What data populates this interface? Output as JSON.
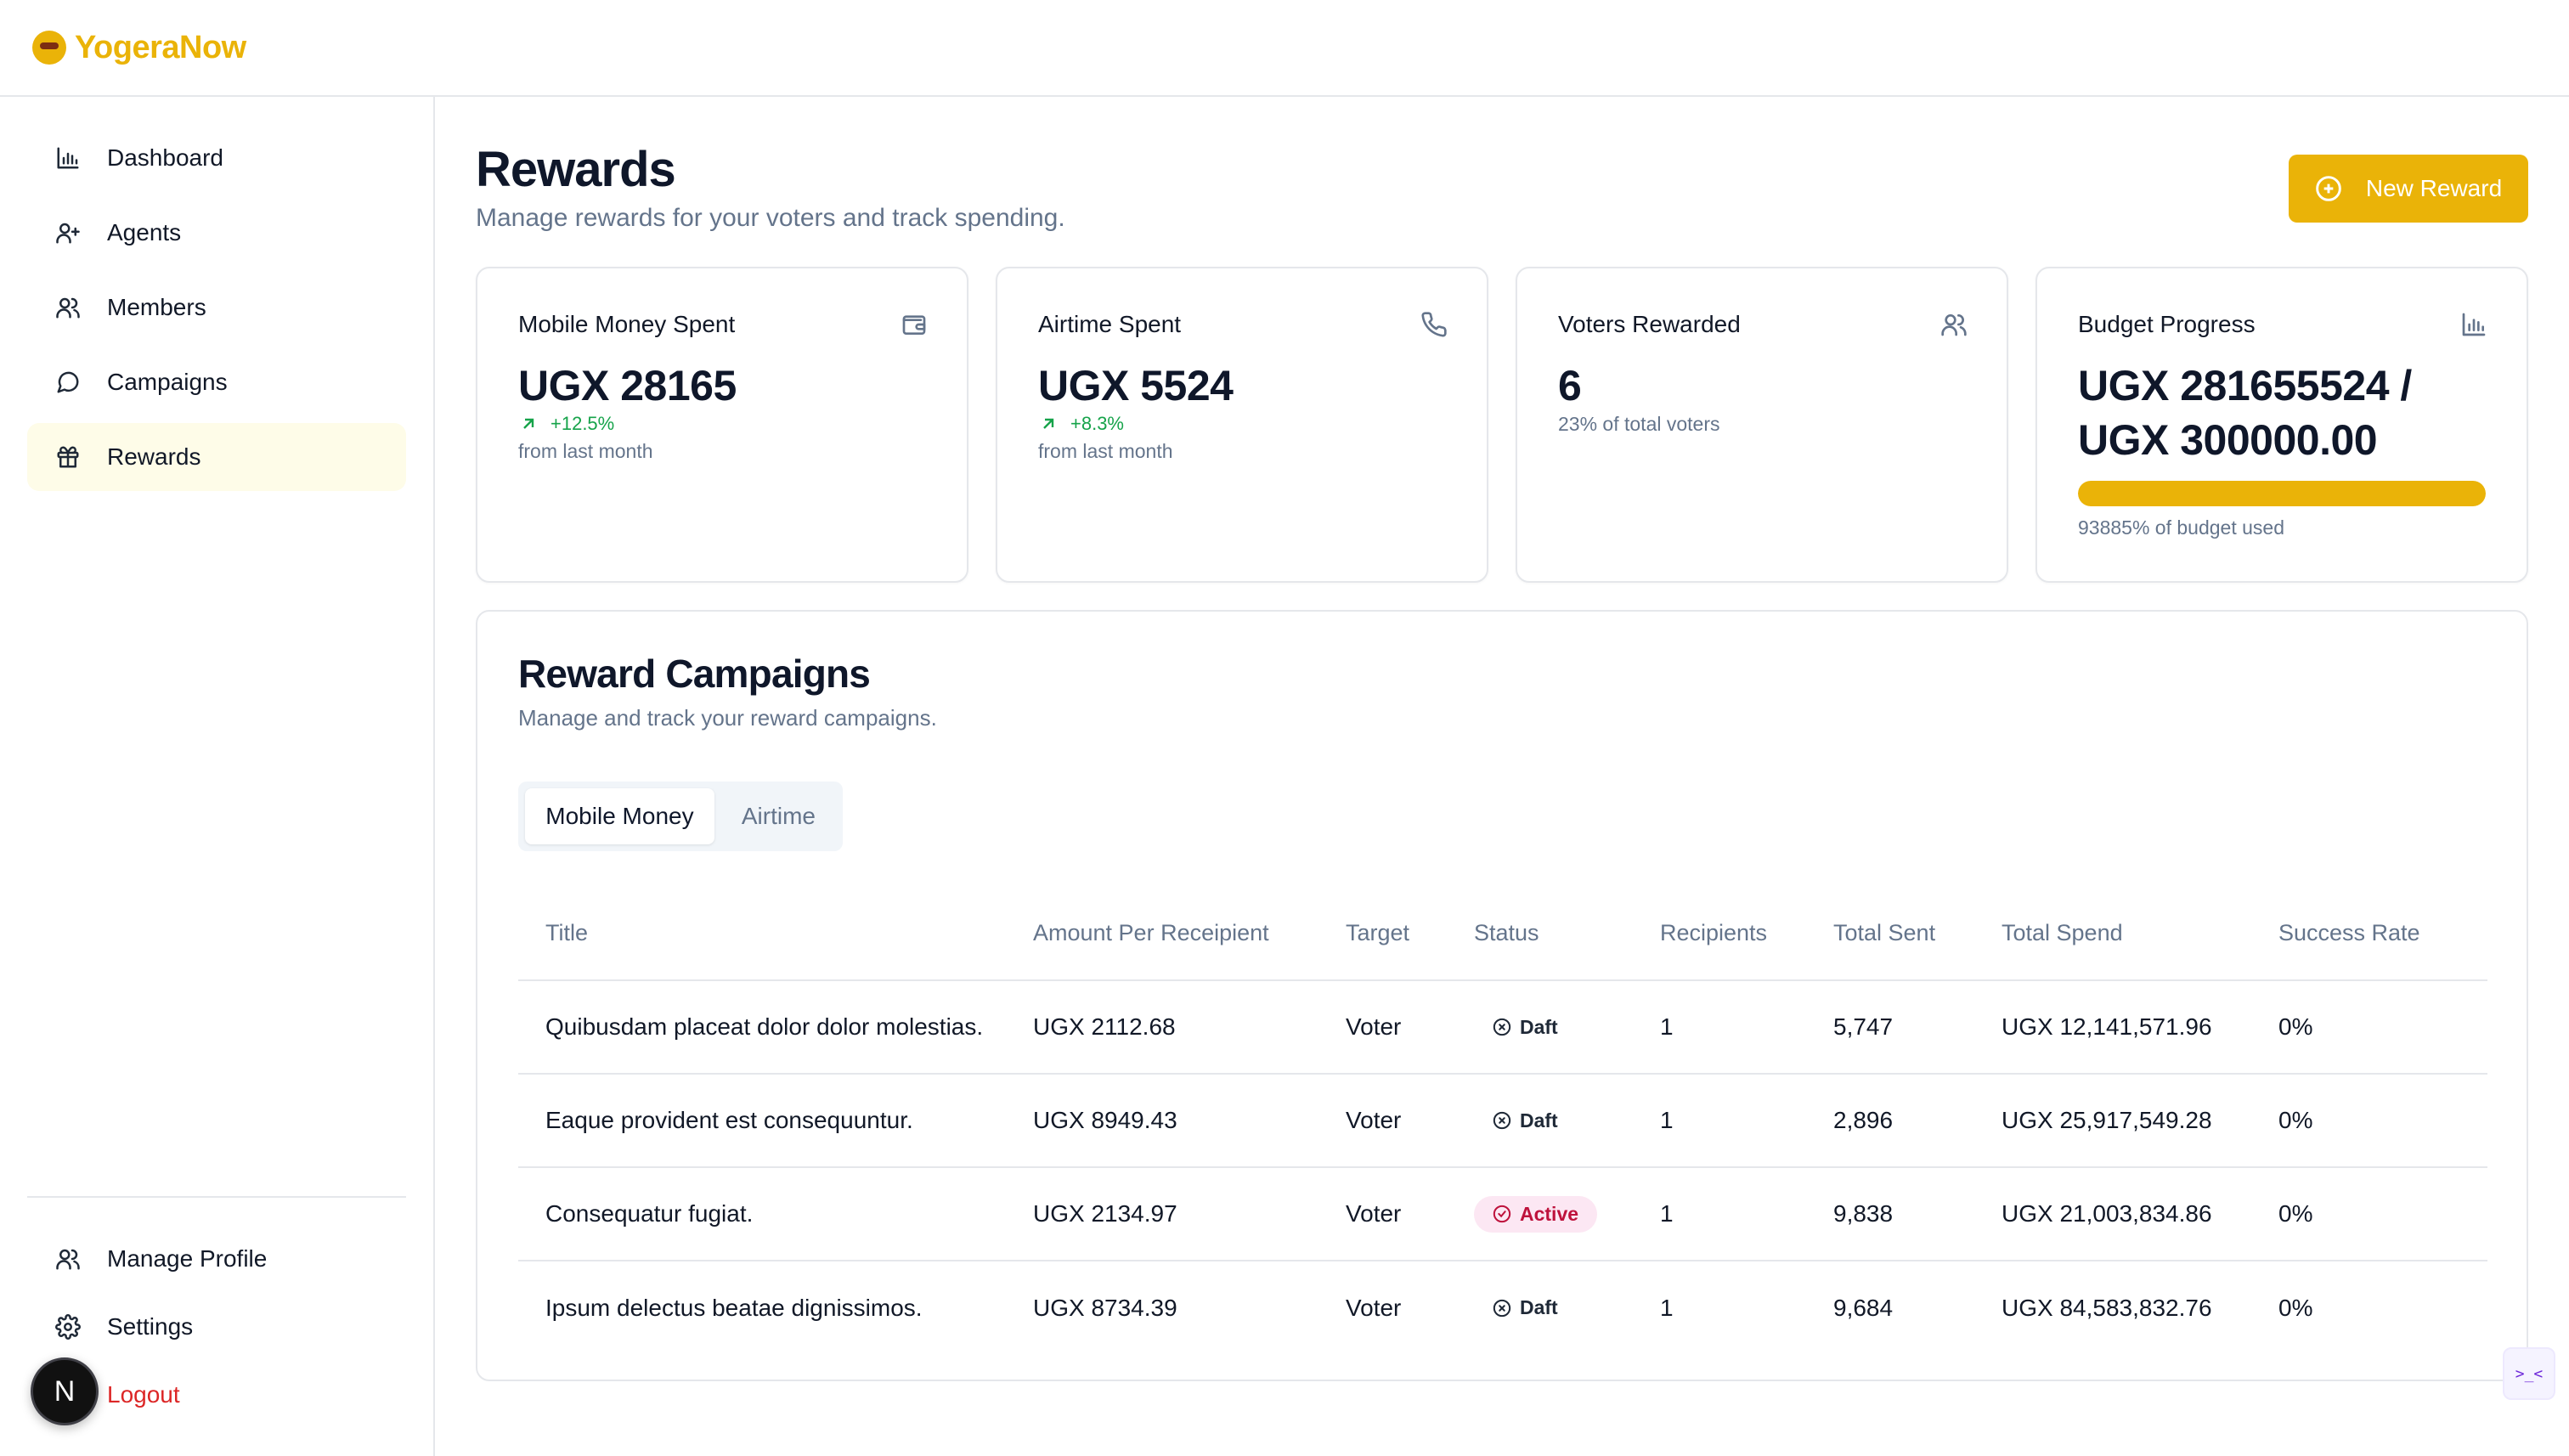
{
  "brand": {
    "name": "YogeraNow",
    "logo_icon": "tiger-face-icon",
    "color": "#eab308"
  },
  "sidebar": {
    "items": [
      {
        "label": "Dashboard",
        "icon": "bar-chart-icon"
      },
      {
        "label": "Agents",
        "icon": "user-plus-icon"
      },
      {
        "label": "Members",
        "icon": "users-icon"
      },
      {
        "label": "Campaigns",
        "icon": "message-circle-icon"
      },
      {
        "label": "Rewards",
        "icon": "gift-icon",
        "active": true
      }
    ],
    "bottom_items": [
      {
        "label": "Manage Profile",
        "icon": "users-icon"
      },
      {
        "label": "Settings",
        "icon": "gear-icon"
      },
      {
        "label": "Logout",
        "icon": "logout-icon",
        "color": "#dc2626"
      }
    ],
    "avatar_initial": "N"
  },
  "header": {
    "title": "Rewards",
    "subtitle": "Manage rewards for your voters and track spending.",
    "new_button_label": "New Reward"
  },
  "stats": [
    {
      "title": "Mobile Money Spent",
      "value": "UGX 28165",
      "trend": "+12.5%",
      "note": "from last month",
      "icon": "wallet-icon"
    },
    {
      "title": "Airtime Spent",
      "value": "UGX 5524",
      "trend": "+8.3%",
      "note": "from last month",
      "icon": "phone-icon"
    },
    {
      "title": "Voters Rewarded",
      "value": "6",
      "note": "23% of total voters",
      "icon": "users-icon"
    },
    {
      "title": "Budget Progress",
      "value": "UGX 281655524 / UGX 300000.00",
      "note": "93885% of budget used",
      "icon": "bar-chart-icon",
      "progress_fraction": 1.0
    }
  ],
  "campaigns": {
    "title": "Reward Campaigns",
    "subtitle": "Manage and track your reward campaigns.",
    "tabs": [
      {
        "label": "Mobile Money",
        "active": true
      },
      {
        "label": "Airtime",
        "active": false
      }
    ],
    "columns": [
      "Title",
      "Amount Per Receipient",
      "Target",
      "Status",
      "Recipients",
      "Total Sent",
      "Total Spend",
      "Success Rate"
    ],
    "rows": [
      {
        "title": "Quibusdam placeat dolor dolor molestias.",
        "amount": "UGX 2112.68",
        "target": "Voter",
        "status": "Daft",
        "recipients": "1",
        "total_sent": "5,747",
        "total_spend": "UGX 12,141,571.96",
        "success_rate": "0%"
      },
      {
        "title": "Eaque provident est consequuntur.",
        "amount": "UGX 8949.43",
        "target": "Voter",
        "status": "Daft",
        "recipients": "1",
        "total_sent": "2,896",
        "total_spend": "UGX 25,917,549.28",
        "success_rate": "0%"
      },
      {
        "title": "Consequatur fugiat.",
        "amount": "UGX 2134.97",
        "target": "Voter",
        "status": "Active",
        "recipients": "1",
        "total_sent": "9,838",
        "total_spend": "UGX 21,003,834.86",
        "success_rate": "0%"
      },
      {
        "title": "Ipsum delectus beatae dignissimos.",
        "amount": "UGX 8734.39",
        "target": "Voter",
        "status": "Daft",
        "recipients": "1",
        "total_sent": "9,684",
        "total_spend": "UGX 84,583,832.76",
        "success_rate": "0%"
      }
    ]
  },
  "status_colors": {
    "active_text": "#be123c",
    "active_bg": "#fce7f3"
  },
  "dev_widget": {
    "text": ">_<"
  }
}
